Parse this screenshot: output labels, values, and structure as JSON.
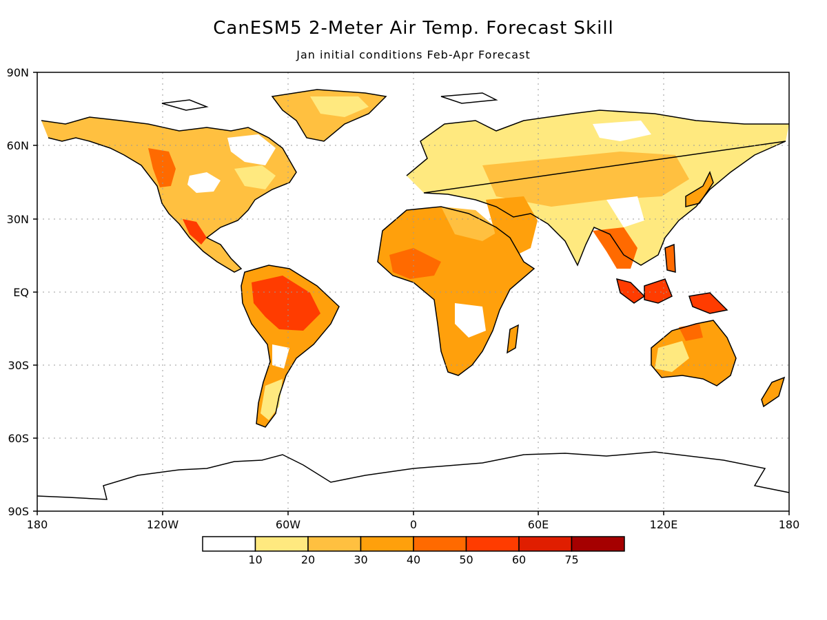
{
  "title": "CanESM5 2-Meter Air Temp. Forecast Skill",
  "subtitle": "Jan initial conditions  Feb-Apr Forecast",
  "map": {
    "lat_ticks": [
      "90N",
      "60N",
      "30N",
      "EQ",
      "30S",
      "60S",
      "90S"
    ],
    "lon_ticks": [
      "180",
      "120W",
      "60W",
      "0",
      "60E",
      "120E",
      "180"
    ]
  },
  "colorbar": {
    "colors": [
      "#ffffff",
      "#ffe97f",
      "#ffc040",
      "#ffa00c",
      "#ff6a00",
      "#ff3c00",
      "#e01e00",
      "#a50000"
    ],
    "labels": [
      "10",
      "20",
      "30",
      "40",
      "50",
      "60",
      "75"
    ]
  }
}
